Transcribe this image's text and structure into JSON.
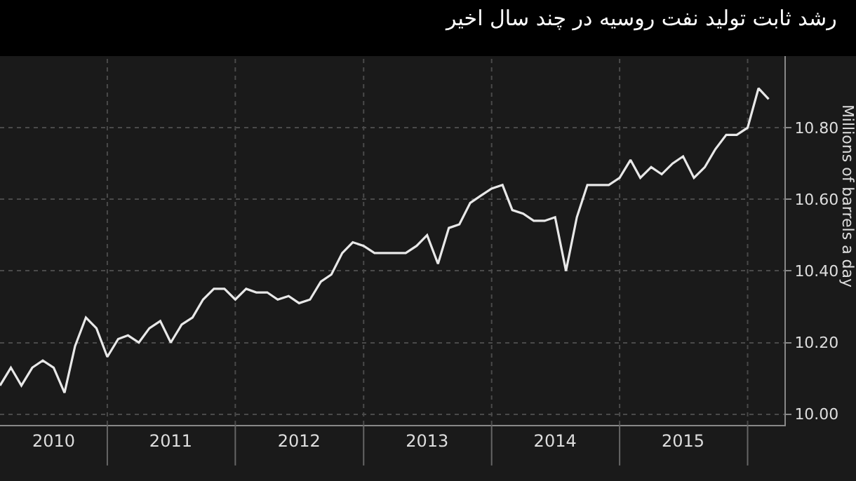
{
  "chart_data": {
    "type": "line",
    "title": "رشد ثابت تولید نفت روسیه در چند سال اخیر",
    "ylabel": "Millions of barrels a day",
    "x": [
      "2010-03",
      "2010-04",
      "2010-05",
      "2010-06",
      "2010-07",
      "2010-08",
      "2010-09",
      "2010-10",
      "2010-11",
      "2010-12",
      "2011-01",
      "2011-02",
      "2011-03",
      "2011-04",
      "2011-05",
      "2011-06",
      "2011-07",
      "2011-08",
      "2011-09",
      "2011-10",
      "2011-11",
      "2011-12",
      "2012-01",
      "2012-02",
      "2012-03",
      "2012-04",
      "2012-05",
      "2012-06",
      "2012-07",
      "2012-08",
      "2012-09",
      "2012-10",
      "2012-11",
      "2012-12",
      "2013-01",
      "2013-02",
      "2013-03",
      "2013-04",
      "2013-05",
      "2013-06",
      "2013-07",
      "2013-08",
      "2013-09",
      "2013-10",
      "2013-11",
      "2013-12",
      "2014-01",
      "2014-02",
      "2014-03",
      "2014-04",
      "2014-05",
      "2014-06",
      "2014-07",
      "2014-08",
      "2014-09",
      "2014-10",
      "2014-11",
      "2014-12",
      "2015-01",
      "2015-02",
      "2015-03",
      "2015-04",
      "2015-05",
      "2015-06",
      "2015-07",
      "2015-08",
      "2015-09",
      "2015-10",
      "2015-11",
      "2015-12",
      "2016-01",
      "2016-02",
      "2016-03"
    ],
    "series": [
      {
        "color": "#e8e8e8",
        "values": [
          10.08,
          10.13,
          10.08,
          10.13,
          10.15,
          10.13,
          10.06,
          10.19,
          10.27,
          10.24,
          10.16,
          10.21,
          10.22,
          10.2,
          10.24,
          10.26,
          10.2,
          10.25,
          10.27,
          10.32,
          10.35,
          10.35,
          10.32,
          10.35,
          10.34,
          10.34,
          10.32,
          10.33,
          10.31,
          10.32,
          10.37,
          10.39,
          10.45,
          10.48,
          10.47,
          10.45,
          10.45,
          10.45,
          10.45,
          10.47,
          10.5,
          10.42,
          10.52,
          10.53,
          10.59,
          10.61,
          10.63,
          10.64,
          10.57,
          10.56,
          10.54,
          10.54,
          10.55,
          10.4,
          10.55,
          10.64,
          10.64,
          10.64,
          10.66,
          10.71,
          10.66,
          10.69,
          10.67,
          10.7,
          10.72,
          10.66,
          10.69,
          10.74,
          10.78,
          10.78,
          10.8,
          10.91,
          10.88
        ]
      }
    ],
    "xlim": [
      "2010-03-01",
      "2016-04-15"
    ],
    "xticks": [
      {
        "value": "2010-08-01",
        "label": "2010"
      },
      {
        "value": "2011-01-01",
        "label": null
      },
      {
        "value": "2011-07-01",
        "label": "2011"
      },
      {
        "value": "2012-01-01",
        "label": null
      },
      {
        "value": "2012-07-01",
        "label": "2012"
      },
      {
        "value": "2013-01-01",
        "label": null
      },
      {
        "value": "2013-07-01",
        "label": "2013"
      },
      {
        "value": "2014-01-01",
        "label": null
      },
      {
        "value": "2014-07-01",
        "label": "2014"
      },
      {
        "value": "2015-01-01",
        "label": null
      },
      {
        "value": "2015-07-01",
        "label": "2015"
      },
      {
        "value": "2016-01-01",
        "label": null
      }
    ],
    "ylim": [
      9.97,
      11.0
    ],
    "yticks": [
      {
        "value": 10.0,
        "label": "10.00"
      },
      {
        "value": 10.2,
        "label": "10.20"
      },
      {
        "value": 10.4,
        "label": "10.40"
      },
      {
        "value": 10.6,
        "label": "10.60"
      },
      {
        "value": 10.8,
        "label": "10.80"
      }
    ],
    "grid": true,
    "marker": "none",
    "line_style": "solid"
  }
}
